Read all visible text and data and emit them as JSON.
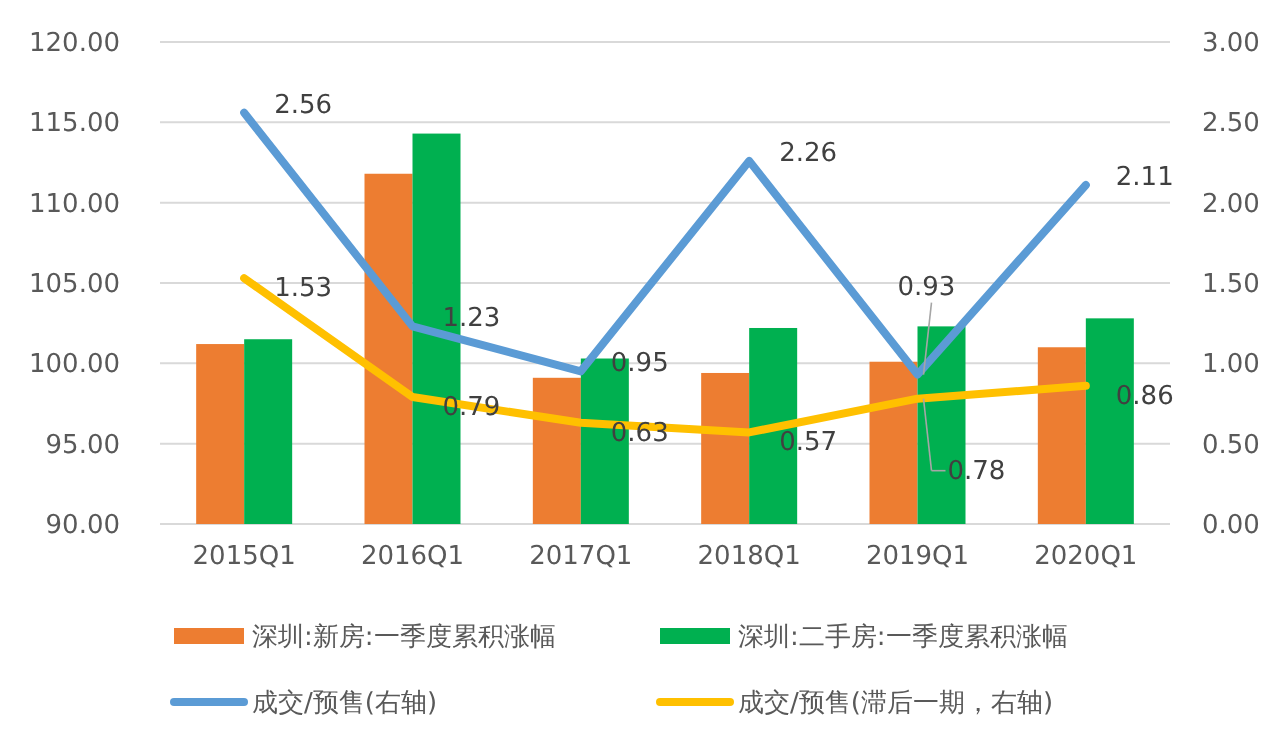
{
  "chart_data": {
    "type": "bar",
    "categories": [
      "2015Q1",
      "2016Q1",
      "2017Q1",
      "2018Q1",
      "2019Q1",
      "2020Q1"
    ],
    "series": [
      {
        "name": "深圳:新房:一季度累积涨幅",
        "color": "#ed7d31",
        "values": [
          101.2,
          111.8,
          99.1,
          99.4,
          100.1,
          101.0
        ]
      },
      {
        "name": "深圳:二手房:一季度累积涨幅",
        "color": "#00b050",
        "values": [
          101.5,
          114.3,
          100.3,
          102.2,
          102.3,
          102.8
        ]
      },
      {
        "name": "成交/预售(右轴)",
        "type": "line",
        "axis": "y2",
        "color": "#5b9bd5",
        "values": [
          2.56,
          1.23,
          0.95,
          2.26,
          0.93,
          2.11
        ],
        "value_labels": [
          "2.56",
          "1.23",
          "0.95",
          "2.26",
          "0.93",
          "2.11"
        ]
      },
      {
        "name": "成交/预售(滞后一期，右轴)",
        "type": "line",
        "axis": "y2",
        "color": "#ffc000",
        "values": [
          1.53,
          0.79,
          0.63,
          0.57,
          0.78,
          0.86
        ],
        "value_labels": [
          "1.53",
          "0.79",
          "0.63",
          "0.57",
          "0.78",
          "0.86"
        ]
      }
    ],
    "ylim": [
      90,
      120
    ],
    "yticks": [
      {
        "value": 90,
        "label": "90.00"
      },
      {
        "value": 95,
        "label": "95.00"
      },
      {
        "value": 100,
        "label": "100.00"
      },
      {
        "value": 105,
        "label": "105.00"
      },
      {
        "value": 110,
        "label": "110.00"
      },
      {
        "value": 115,
        "label": "115.00"
      },
      {
        "value": 120,
        "label": "120.00"
      }
    ],
    "y2lim": [
      0,
      3
    ],
    "y2ticks": [
      {
        "value": 0,
        "label": "0.00"
      },
      {
        "value": 0.5,
        "label": "0.50"
      },
      {
        "value": 1,
        "label": "1.00"
      },
      {
        "value": 1.5,
        "label": "1.50"
      },
      {
        "value": 2,
        "label": "2.00"
      },
      {
        "value": 2.5,
        "label": "2.50"
      },
      {
        "value": 3,
        "label": "3.00"
      }
    ],
    "grid": "y",
    "legend": "bottom"
  }
}
